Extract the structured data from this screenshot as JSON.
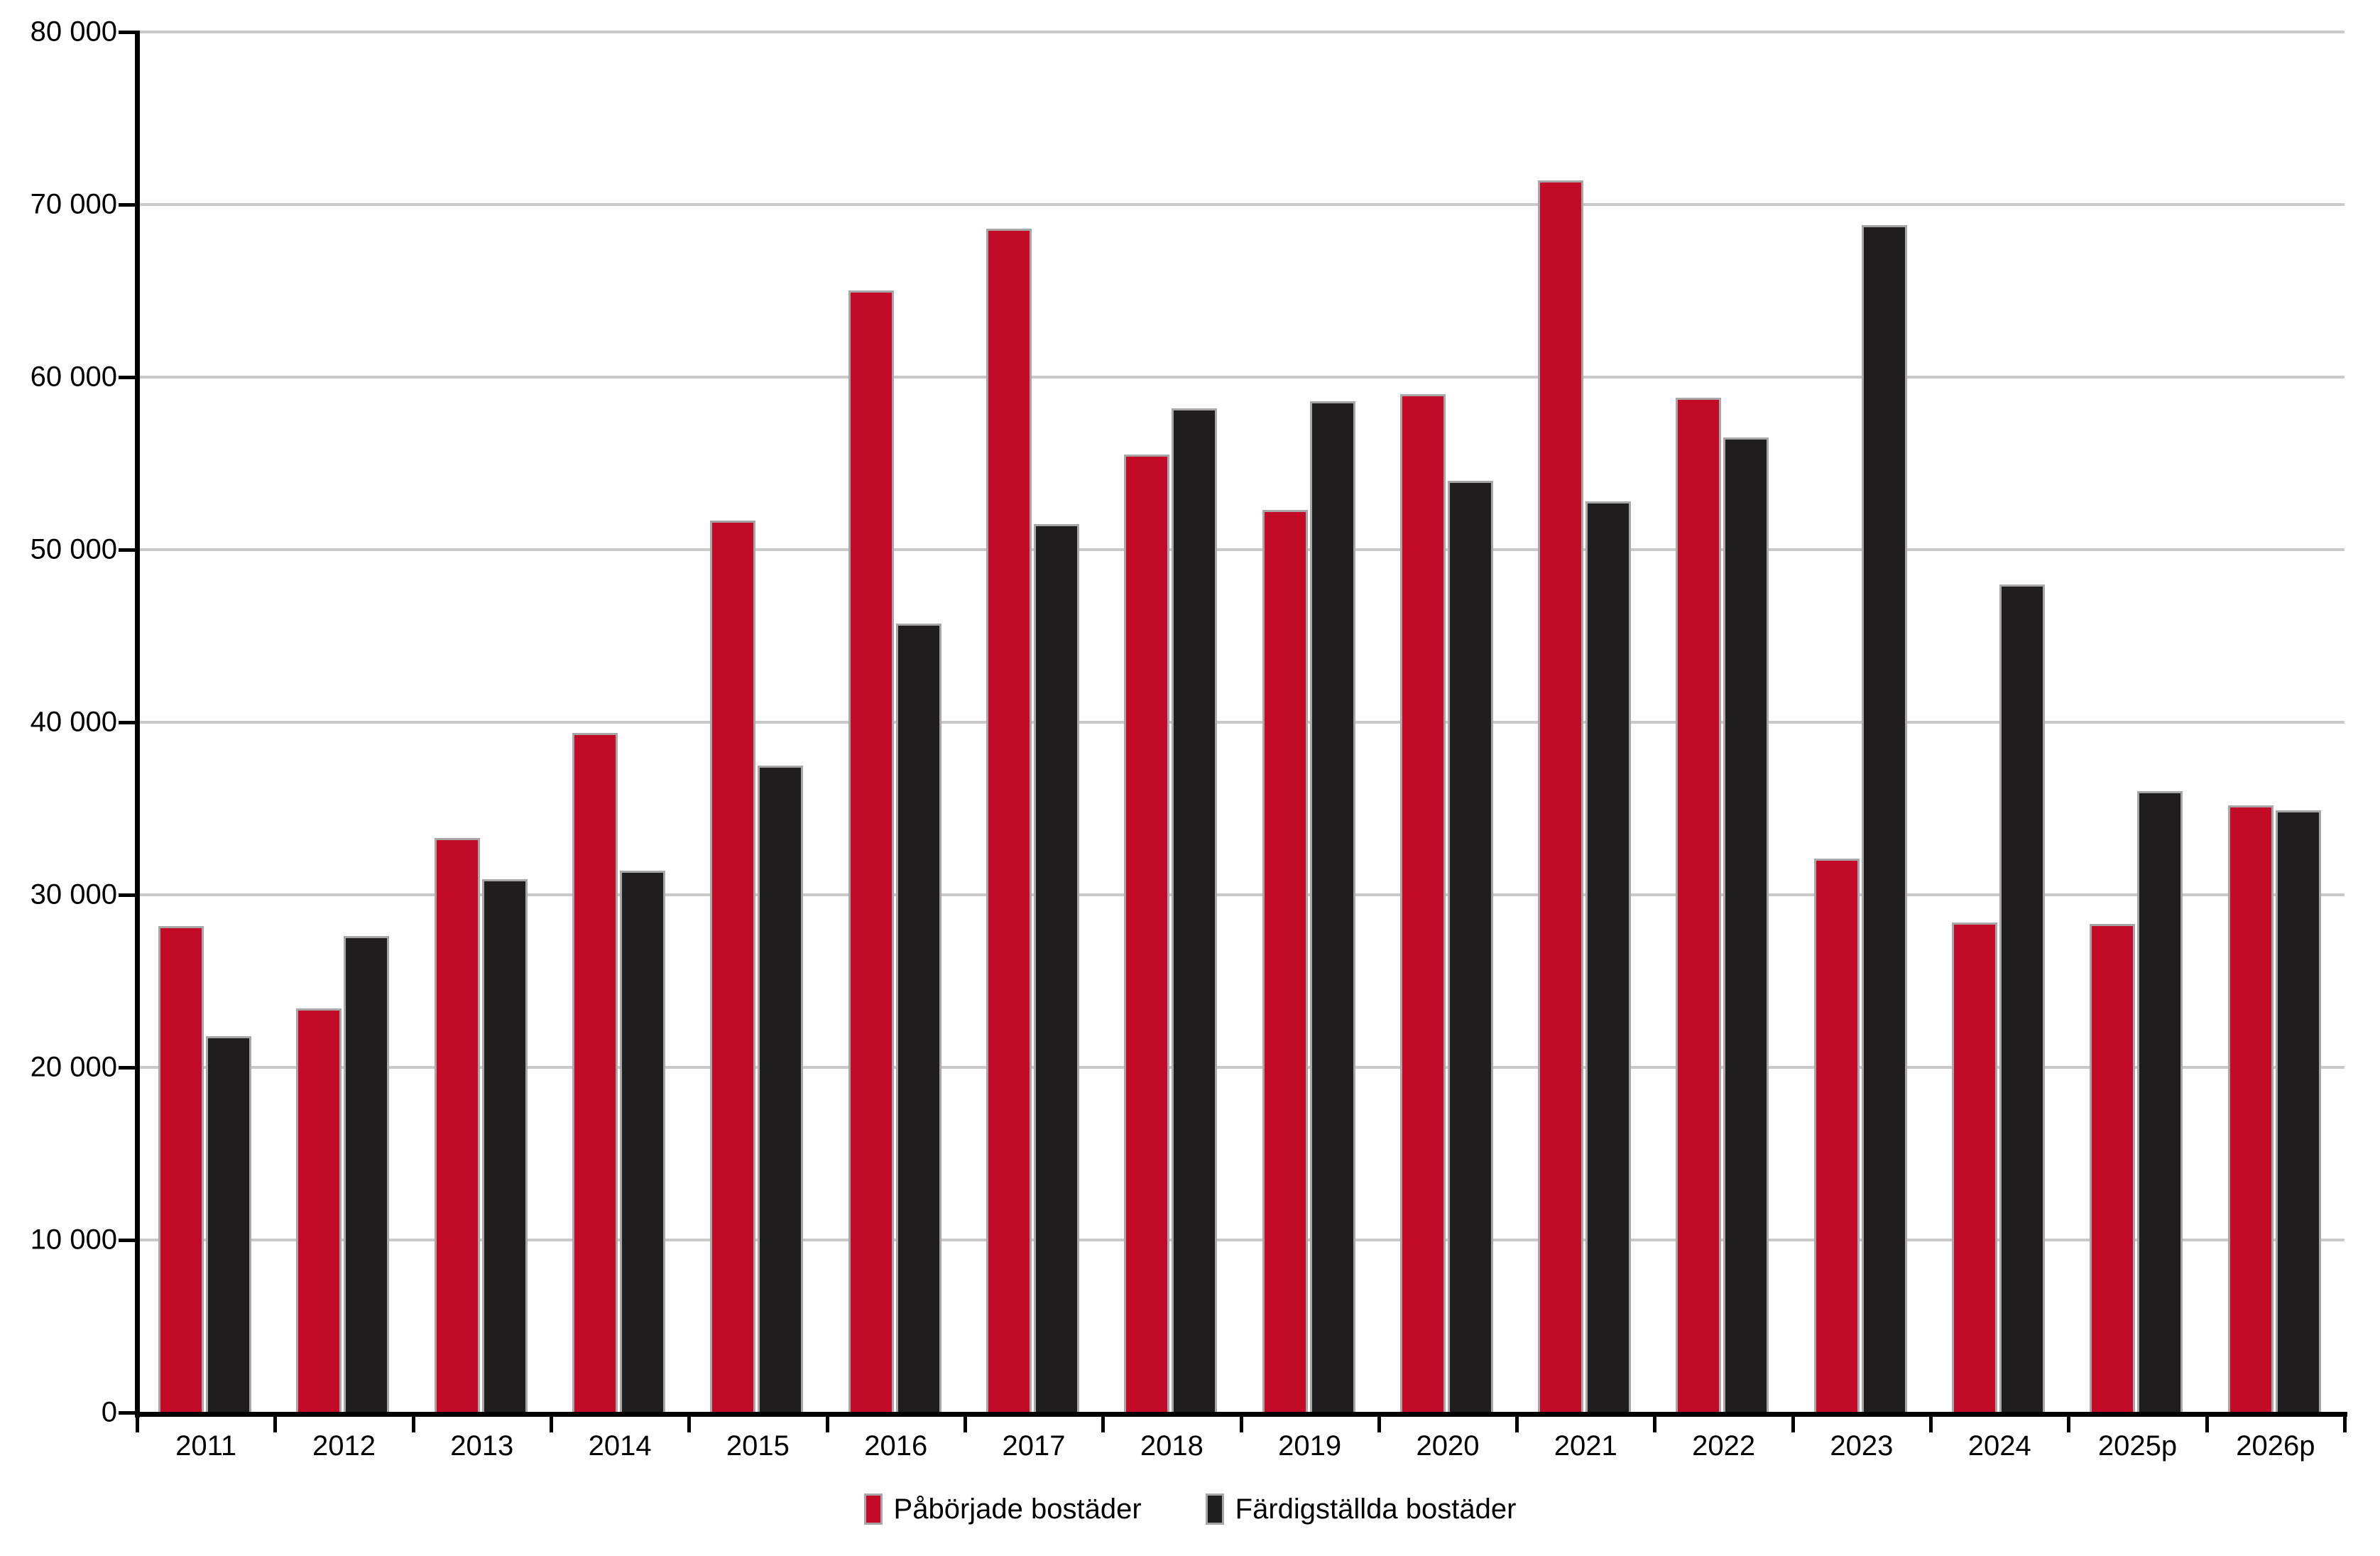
{
  "chart_data": {
    "type": "bar",
    "title": "",
    "xlabel": "",
    "ylabel": "",
    "categories": [
      "2011",
      "2012",
      "2013",
      "2014",
      "2015",
      "2016",
      "2017",
      "2018",
      "2019",
      "2020",
      "2021",
      "2022",
      "2023",
      "2024",
      "2025p",
      "2026p"
    ],
    "series": [
      {
        "name": "Påbörjade bostäder",
        "color": "#c30b28",
        "values": [
          28200,
          23400,
          33300,
          39400,
          51700,
          65000,
          68600,
          55500,
          52300,
          59000,
          71400,
          58800,
          32100,
          28400,
          28300,
          35200
        ]
      },
      {
        "name": "Färdigställda bostäder",
        "color": "#1f1d1e",
        "values": [
          21800,
          27600,
          30900,
          31400,
          37500,
          45700,
          51500,
          58200,
          58600,
          54000,
          52800,
          56500,
          68800,
          48000,
          36000,
          34900
        ]
      }
    ],
    "ylim": [
      0,
      80000
    ],
    "y_tick_step": 10000,
    "y_tick_labels": [
      "0",
      "10 000",
      "20 000",
      "30 000",
      "40 000",
      "50 000",
      "60 000",
      "70 000",
      "80 000"
    ],
    "grid": "horizontal",
    "gridline_color": "#c9c9c9",
    "bar_border_color": "#a7a7a7",
    "axis_color": "#000000",
    "legend_position": "bottom"
  }
}
